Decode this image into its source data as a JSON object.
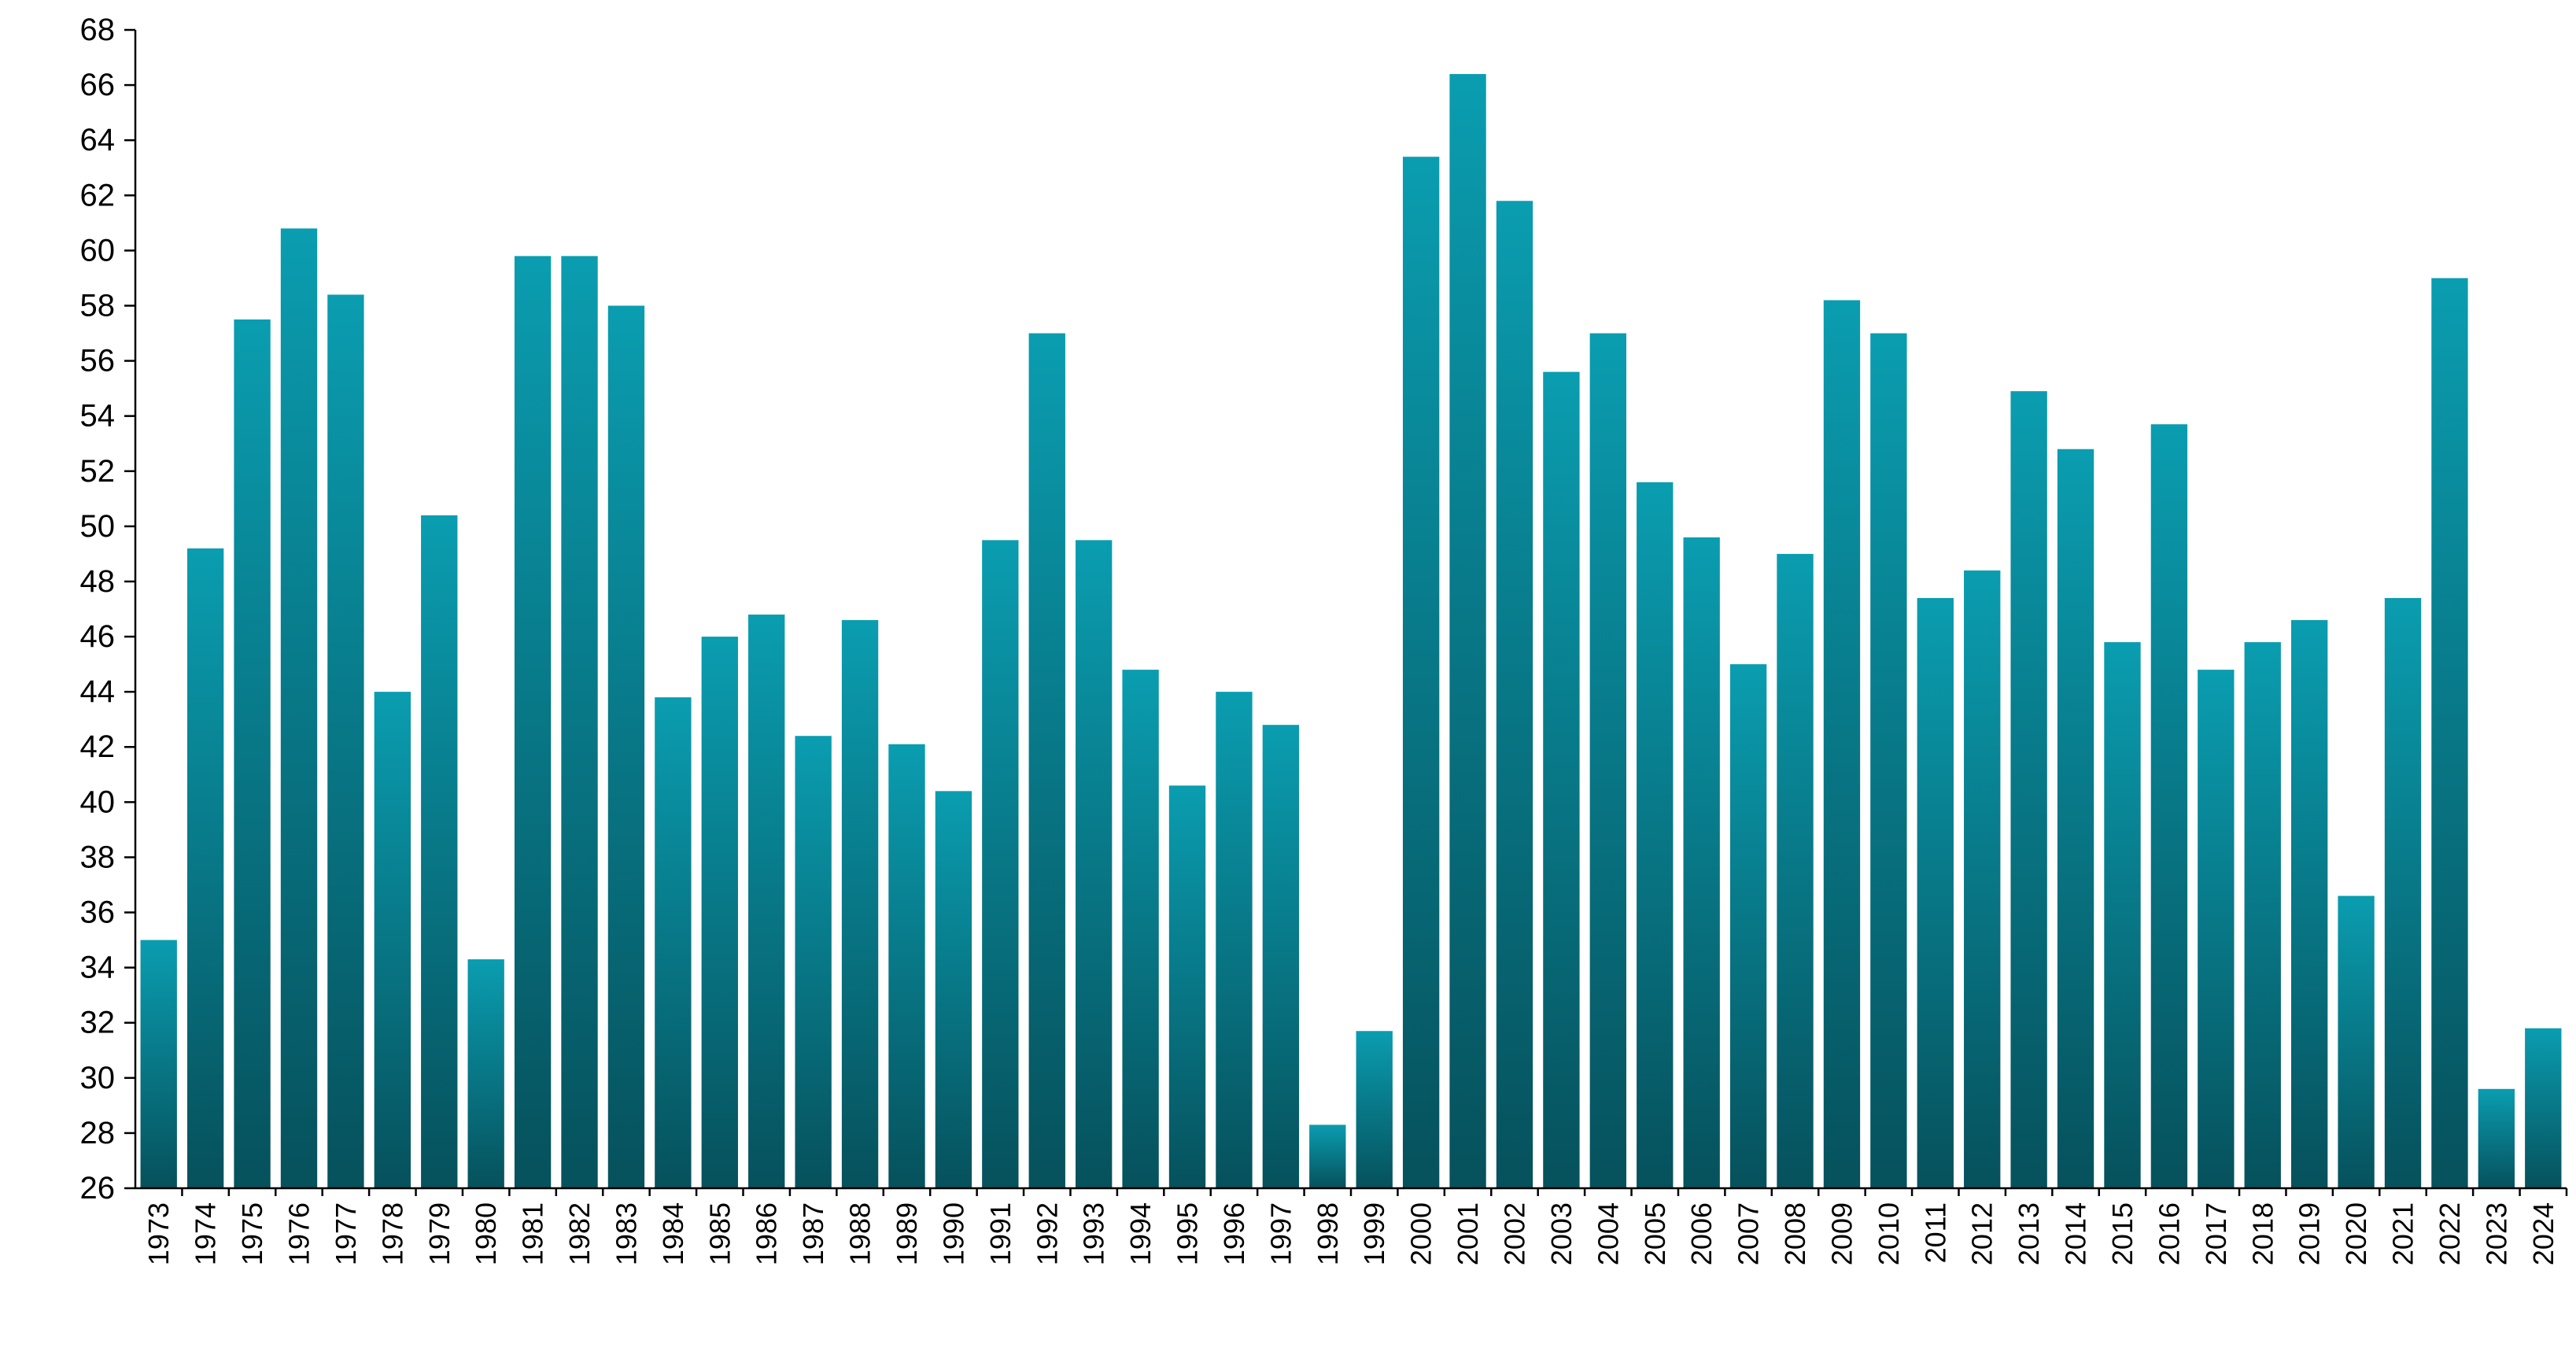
{
  "chart_data": {
    "type": "bar",
    "title": "",
    "xlabel": "",
    "ylabel": "",
    "ylim": [
      26,
      68
    ],
    "ytick_step": 2,
    "grid": false,
    "legend": "none",
    "colors": {
      "bar_top": "#0a9db0",
      "bar_bottom": "#06515c",
      "axis": "#000000"
    },
    "categories": [
      "1973",
      "1974",
      "1975",
      "1976",
      "1977",
      "1978",
      "1979",
      "1980",
      "1981",
      "1982",
      "1983",
      "1984",
      "1985",
      "1986",
      "1987",
      "1988",
      "1989",
      "1990",
      "1991",
      "1992",
      "1993",
      "1994",
      "1995",
      "1996",
      "1997",
      "1998",
      "1999",
      "2000",
      "2001",
      "2002",
      "2003",
      "2004",
      "2005",
      "2006",
      "2007",
      "2008",
      "2009",
      "2010",
      "2011",
      "2012",
      "2013",
      "2014",
      "2015",
      "2016",
      "2017",
      "2018",
      "2019",
      "2020",
      "2021",
      "2022",
      "2023",
      "2024"
    ],
    "values": [
      35.0,
      49.2,
      57.5,
      60.8,
      58.4,
      44.0,
      50.4,
      34.3,
      59.8,
      59.8,
      58.0,
      43.8,
      46.0,
      46.8,
      42.4,
      46.6,
      42.1,
      40.4,
      49.5,
      57.0,
      49.5,
      44.8,
      40.6,
      44.0,
      42.8,
      28.3,
      31.7,
      63.4,
      66.4,
      61.8,
      55.6,
      57.0,
      51.6,
      49.6,
      45.0,
      49.0,
      58.2,
      57.0,
      47.4,
      48.4,
      54.9,
      52.8,
      45.8,
      53.7,
      44.8,
      45.8,
      46.6,
      36.6,
      47.4,
      59.0,
      29.6,
      31.8
    ]
  }
}
